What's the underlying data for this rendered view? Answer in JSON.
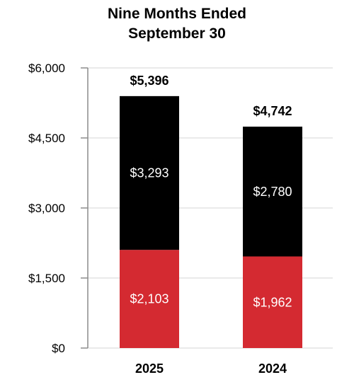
{
  "chart_data": {
    "type": "bar",
    "stacked": true,
    "title_lines": [
      "Nine Months Ended",
      "September 30"
    ],
    "categories": [
      "2025",
      "2024"
    ],
    "series": [
      {
        "values": [
          2103,
          1962
        ],
        "labels": [
          "$2,103",
          "$1,962"
        ],
        "color": "#d42a31"
      },
      {
        "values": [
          3293,
          2780
        ],
        "labels": [
          "$3,293",
          "$2,780"
        ],
        "color": "#000000"
      }
    ],
    "totals": [
      5396,
      4742
    ],
    "total_labels": [
      "$5,396",
      "$4,742"
    ],
    "ylim": [
      0,
      6000
    ],
    "yticks": [
      0,
      1500,
      3000,
      4500,
      6000
    ],
    "ytick_labels": [
      "$0",
      "$1,500",
      "$3,000",
      "$4,500",
      "$6,000"
    ],
    "grid": true,
    "colors": {
      "grid": "#e3e3e3",
      "axis": "#8c8c8c",
      "segment_label": "#ffffff",
      "text": "#000000"
    }
  }
}
